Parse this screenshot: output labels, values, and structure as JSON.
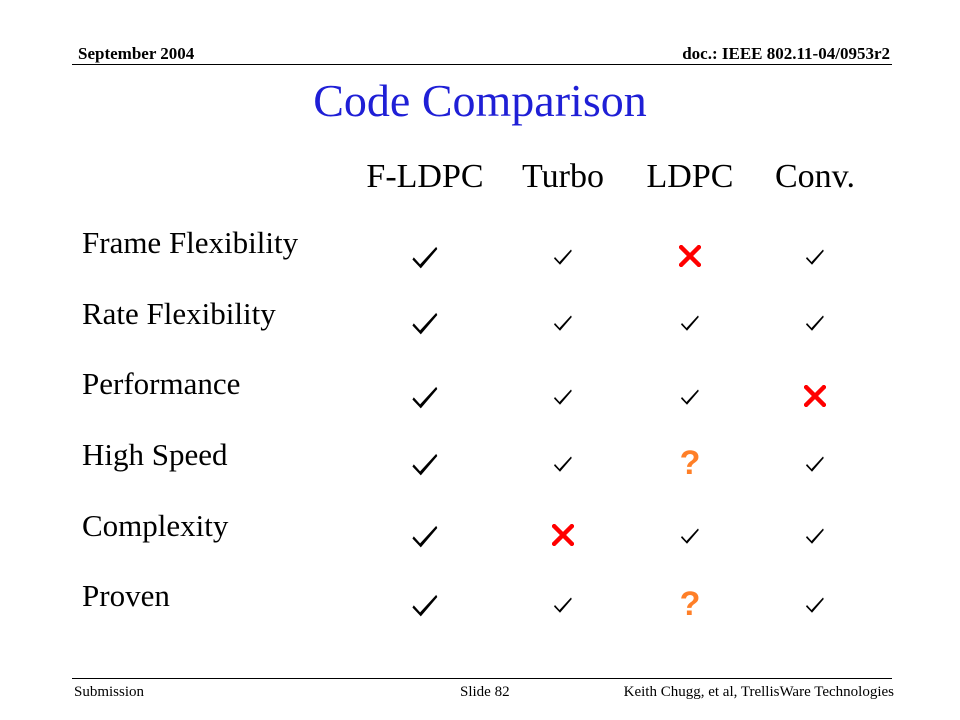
{
  "header": {
    "date": "September 2004",
    "doc_id": "doc.: IEEE 802.11-04/0953r2"
  },
  "title": "Code Comparison",
  "columns": [
    "F-LDPC",
    "Turbo",
    "LDPC",
    "Conv."
  ],
  "rows": [
    {
      "label": "Frame Flexibility",
      "cells": [
        "check",
        "check",
        "cross",
        "check"
      ]
    },
    {
      "label": "Rate Flexibility",
      "cells": [
        "check",
        "check",
        "check",
        "check"
      ]
    },
    {
      "label": "Performance",
      "cells": [
        "check",
        "check",
        "check",
        "cross"
      ]
    },
    {
      "label": "High Speed",
      "cells": [
        "check",
        "check",
        "question",
        "check"
      ]
    },
    {
      "label": "Complexity",
      "cells": [
        "check",
        "cross",
        "check",
        "check"
      ]
    },
    {
      "label": "Proven",
      "cells": [
        "check",
        "check",
        "question",
        "check"
      ]
    }
  ],
  "question_text": "?",
  "colors": {
    "title": "#1f1fd6",
    "cross": "#ff0000",
    "question": "#ff7f27",
    "check": "#000000"
  },
  "footer": {
    "left": "Submission",
    "center": "Slide 82",
    "right": "Keith Chugg, et al, TrellisWare Technologies"
  }
}
